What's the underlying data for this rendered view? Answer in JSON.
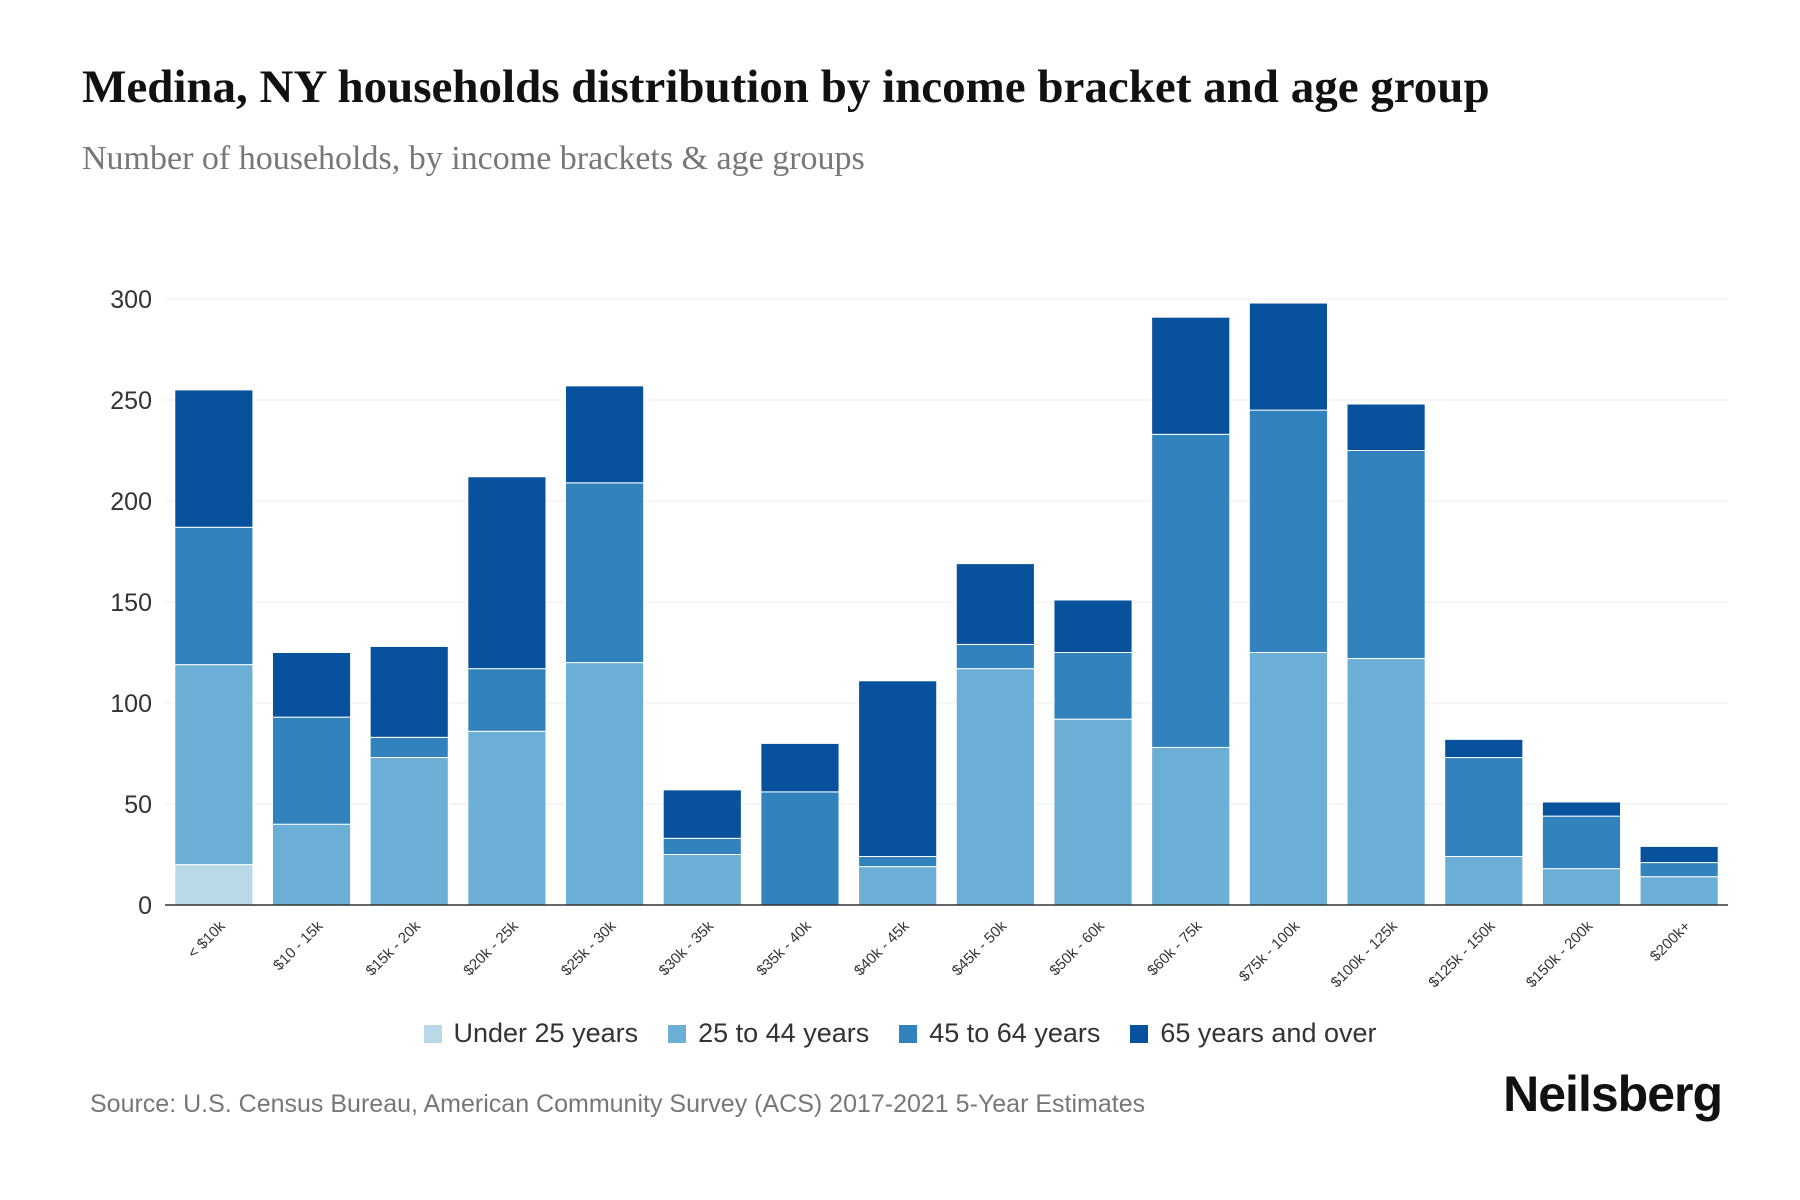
{
  "title": "Medina, NY households distribution by income bracket and age group",
  "subtitle": "Number of households, by income brackets & age groups",
  "source": "Source: U.S. Census Bureau, American Community Survey (ACS) 2017-2021 5-Year Estimates",
  "logo": "Neilsberg",
  "chart_data": {
    "type": "bar",
    "stacked": true,
    "title": "Medina, NY households distribution by income bracket and age group",
    "xlabel": "",
    "ylabel": "",
    "ylim": [
      0,
      300
    ],
    "yticks": [
      0,
      50,
      100,
      150,
      200,
      250,
      300
    ],
    "grid": true,
    "legend_position": "bottom",
    "categories": [
      "< $10k",
      "$10 - 15k",
      "$15k - 20k",
      "$20k - 25k",
      "$25k - 30k",
      "$30k - 35k",
      "$35k - 40k",
      "$40k - 45k",
      "$45k - 50k",
      "$50k - 60k",
      "$60k - 75k",
      "$75k - 100k",
      "$100k - 125k",
      "$125k - 150k",
      "$150k - 200k",
      "$200k+"
    ],
    "series": [
      {
        "name": "Under 25 years",
        "color": "#b9d9e9",
        "values": [
          20,
          0,
          0,
          0,
          0,
          0,
          0,
          0,
          0,
          0,
          0,
          0,
          0,
          0,
          0,
          0
        ]
      },
      {
        "name": "25 to 44 years",
        "color": "#6baed6",
        "values": [
          99,
          40,
          73,
          86,
          120,
          25,
          0,
          19,
          117,
          92,
          78,
          125,
          122,
          24,
          18,
          14
        ]
      },
      {
        "name": "45 to 64 years",
        "color": "#3182bd",
        "values": [
          68,
          53,
          10,
          31,
          89,
          8,
          56,
          5,
          12,
          33,
          155,
          120,
          103,
          49,
          26,
          7
        ]
      },
      {
        "name": "65 years and over",
        "color": "#08519c",
        "values": [
          68,
          32,
          45,
          95,
          48,
          24,
          24,
          87,
          40,
          26,
          58,
          53,
          23,
          9,
          7,
          8
        ]
      }
    ]
  }
}
